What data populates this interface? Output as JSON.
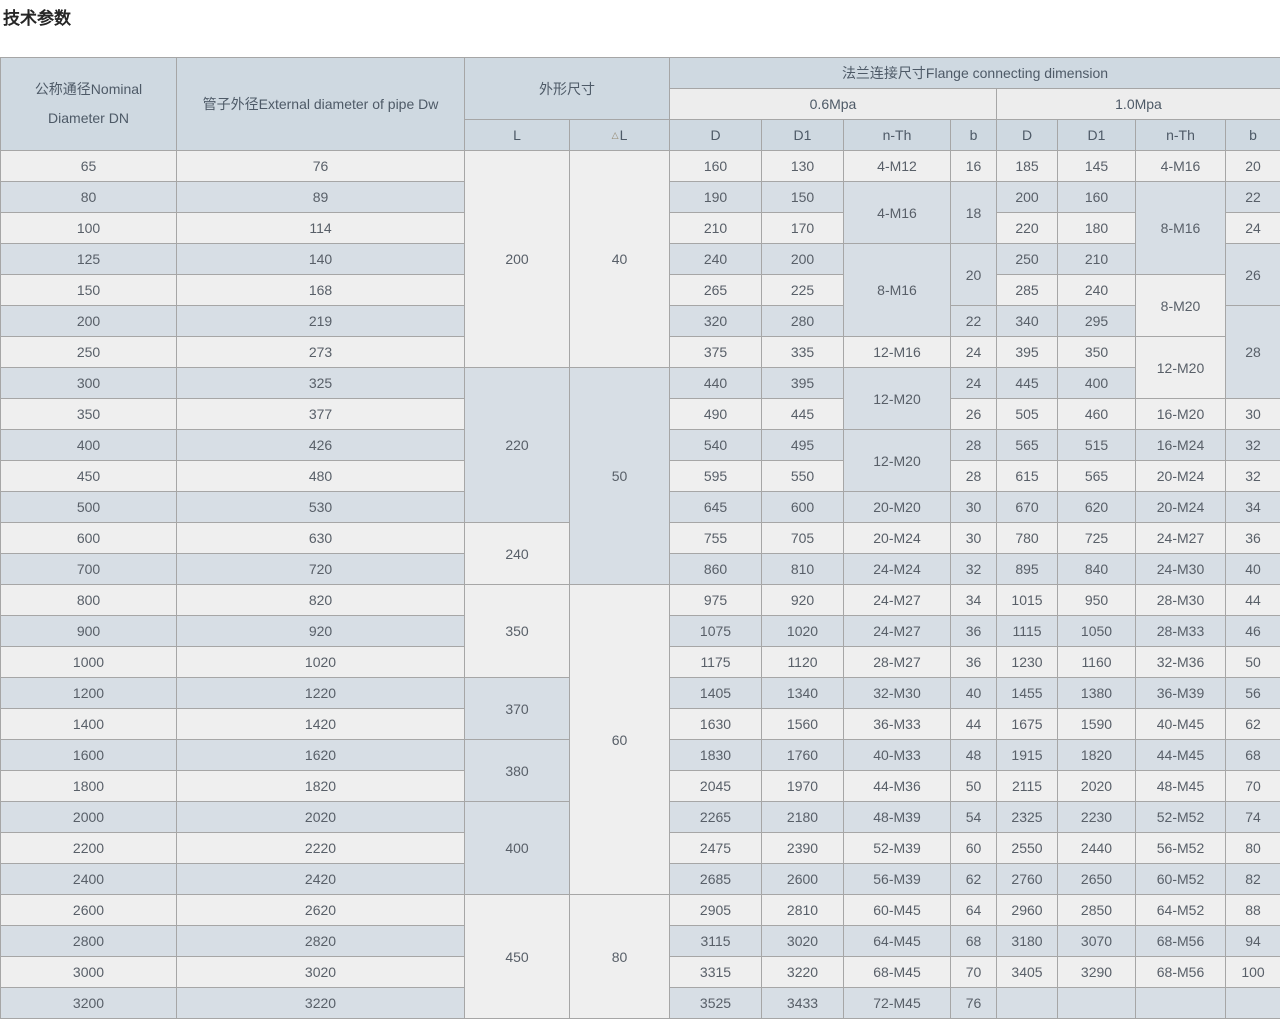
{
  "title": "技术参数",
  "table": {
    "colors": {
      "header_bg": "#cfd9e1",
      "subheader_bg": "#ededed",
      "row_light": "#efefef",
      "row_blue": "#d7dee5",
      "border": "#a6a6a6",
      "text": "#585f68"
    },
    "header": {
      "dn_line1": "公称通径Nominal",
      "dn_line2": "Diameter DN",
      "dw": "管子外径External diameter of pipe Dw",
      "overall": "外形尺寸",
      "flange": "法兰连接尺寸Flange connecting dimension",
      "p06": "0.6Mpa",
      "p10": "1.0Mpa",
      "l": "L",
      "dl_symbol": "△",
      "dl_letter": "L",
      "d": "D",
      "d1": "D1",
      "nth": "n-Th",
      "b": "b"
    },
    "rows": [
      {
        "dn": "65",
        "dw": "76"
      },
      {
        "dn": "80",
        "dw": "89"
      },
      {
        "dn": "100",
        "dw": "114"
      },
      {
        "dn": "125",
        "dw": "140"
      },
      {
        "dn": "150",
        "dw": "168"
      },
      {
        "dn": "200",
        "dw": "219"
      },
      {
        "dn": "250",
        "dw": "273"
      },
      {
        "dn": "300",
        "dw": "325"
      },
      {
        "dn": "350",
        "dw": "377"
      },
      {
        "dn": "400",
        "dw": "426"
      },
      {
        "dn": "450",
        "dw": "480"
      },
      {
        "dn": "500",
        "dw": "530"
      },
      {
        "dn": "600",
        "dw": "630"
      },
      {
        "dn": "700",
        "dw": "720"
      },
      {
        "dn": "800",
        "dw": "820"
      },
      {
        "dn": "900",
        "dw": "920"
      },
      {
        "dn": "1000",
        "dw": "1020"
      },
      {
        "dn": "1200",
        "dw": "1220"
      },
      {
        "dn": "1400",
        "dw": "1420"
      },
      {
        "dn": "1600",
        "dw": "1620"
      },
      {
        "dn": "1800",
        "dw": "1820"
      },
      {
        "dn": "2000",
        "dw": "2020"
      },
      {
        "dn": "2200",
        "dw": "2220"
      },
      {
        "dn": "2400",
        "dw": "2420"
      },
      {
        "dn": "2600",
        "dw": "2620"
      },
      {
        "dn": "2800",
        "dw": "2820"
      },
      {
        "dn": "3000",
        "dw": "3020"
      },
      {
        "dn": "3200",
        "dw": "3220"
      }
    ],
    "l_cells": [
      {
        "v": "200",
        "span": 7
      },
      {
        "v": "220",
        "span": 5
      },
      {
        "v": "240",
        "span": 2
      },
      {
        "v": "350",
        "span": 3
      },
      {
        "v": "370",
        "span": 2
      },
      {
        "v": "380",
        "span": 2
      },
      {
        "v": "400",
        "span": 3
      },
      {
        "v": "450",
        "span": 4
      }
    ],
    "dl_cells": [
      {
        "v": "40",
        "span": 7
      },
      {
        "v": "50",
        "span": 7
      },
      {
        "v": "60",
        "span": 10
      },
      {
        "v": "80",
        "span": 4
      }
    ],
    "p06": {
      "d": [
        "160",
        "190",
        "210",
        "240",
        "265",
        "320",
        "375",
        "440",
        "490",
        "540",
        "595",
        "645",
        "755",
        "860",
        "975",
        "1075",
        "1175",
        "1405",
        "1630",
        "1830",
        "2045",
        "2265",
        "2475",
        "2685",
        "2905",
        "3115",
        "3315",
        "3525"
      ],
      "d1": [
        "130",
        "150",
        "170",
        "200",
        "225",
        "280",
        "335",
        "395",
        "445",
        "495",
        "550",
        "600",
        "705",
        "810",
        "920",
        "1020",
        "1120",
        "1340",
        "1560",
        "1760",
        "1970",
        "2180",
        "2390",
        "2600",
        "2810",
        "3020",
        "3220",
        "3433"
      ],
      "nth_cells": [
        {
          "v": "4-M12",
          "span": 1
        },
        {
          "v": "4-M16",
          "span": 2
        },
        {
          "v": "8-M16",
          "span": 3
        },
        {
          "v": "12-M16",
          "span": 1
        },
        {
          "v": "12-M20",
          "span": 2
        },
        {
          "v": "12-M20",
          "span": 2
        },
        {
          "v": "20-M20",
          "span": 1
        },
        {
          "v": "20-M24",
          "span": 1
        },
        {
          "v": "24-M24",
          "span": 1
        },
        {
          "v": "24-M27",
          "span": 1
        },
        {
          "v": "24-M27",
          "span": 1
        },
        {
          "v": "28-M27",
          "span": 1
        },
        {
          "v": "32-M30",
          "span": 1
        },
        {
          "v": "36-M33",
          "span": 1
        },
        {
          "v": "40-M33",
          "span": 1
        },
        {
          "v": "44-M36",
          "span": 1
        },
        {
          "v": "48-M39",
          "span": 1
        },
        {
          "v": "52-M39",
          "span": 1
        },
        {
          "v": "56-M39",
          "span": 1
        },
        {
          "v": "60-M45",
          "span": 1
        },
        {
          "v": "64-M45",
          "span": 1
        },
        {
          "v": "68-M45",
          "span": 1
        },
        {
          "v": "72-M45",
          "span": 1
        }
      ],
      "b_cells": [
        {
          "v": "16",
          "span": 1
        },
        {
          "v": "18",
          "span": 2
        },
        {
          "v": "20",
          "span": 2
        },
        {
          "v": "22",
          "span": 1
        },
        {
          "v": "24",
          "span": 1
        },
        {
          "v": "24",
          "span": 1
        },
        {
          "v": "26",
          "span": 1
        },
        {
          "v": "28",
          "span": 1
        },
        {
          "v": "28",
          "span": 1
        },
        {
          "v": "30",
          "span": 1
        },
        {
          "v": "30",
          "span": 1
        },
        {
          "v": "32",
          "span": 1
        },
        {
          "v": "34",
          "span": 1
        },
        {
          "v": "36",
          "span": 1
        },
        {
          "v": "36",
          "span": 1
        },
        {
          "v": "40",
          "span": 1
        },
        {
          "v": "44",
          "span": 1
        },
        {
          "v": "48",
          "span": 1
        },
        {
          "v": "50",
          "span": 1
        },
        {
          "v": "54",
          "span": 1
        },
        {
          "v": "60",
          "span": 1
        },
        {
          "v": "62",
          "span": 1
        },
        {
          "v": "64",
          "span": 1
        },
        {
          "v": "68",
          "span": 1
        },
        {
          "v": "70",
          "span": 1
        },
        {
          "v": "76",
          "span": 1
        }
      ]
    },
    "p10": {
      "d": [
        "185",
        "200",
        "220",
        "250",
        "285",
        "340",
        "395",
        "445",
        "505",
        "565",
        "615",
        "670",
        "780",
        "895",
        "1015",
        "1115",
        "1230",
        "1455",
        "1675",
        "1915",
        "2115",
        "2325",
        "2550",
        "2760",
        "2960",
        "3180",
        "3405",
        ""
      ],
      "d1": [
        "145",
        "160",
        "180",
        "210",
        "240",
        "295",
        "350",
        "400",
        "460",
        "515",
        "565",
        "620",
        "725",
        "840",
        "950",
        "1050",
        "1160",
        "1380",
        "1590",
        "1820",
        "2020",
        "2230",
        "2440",
        "2650",
        "2850",
        "3070",
        "3290",
        ""
      ],
      "nth_cells": [
        {
          "v": "4-M16",
          "span": 1
        },
        {
          "v": "8-M16",
          "span": 3
        },
        {
          "v": "8-M20",
          "span": 2
        },
        {
          "v": "12-M20",
          "span": 2
        },
        {
          "v": "16-M20",
          "span": 1
        },
        {
          "v": "16-M24",
          "span": 1
        },
        {
          "v": "20-M24",
          "span": 1
        },
        {
          "v": "20-M24",
          "span": 1
        },
        {
          "v": "24-M27",
          "span": 1
        },
        {
          "v": "24-M30",
          "span": 1
        },
        {
          "v": "28-M30",
          "span": 1
        },
        {
          "v": "28-M33",
          "span": 1
        },
        {
          "v": "32-M36",
          "span": 1
        },
        {
          "v": "36-M39",
          "span": 1
        },
        {
          "v": "40-M45",
          "span": 1
        },
        {
          "v": "44-M45",
          "span": 1
        },
        {
          "v": "48-M45",
          "span": 1
        },
        {
          "v": "52-M52",
          "span": 1
        },
        {
          "v": "56-M52",
          "span": 1
        },
        {
          "v": "60-M52",
          "span": 1
        },
        {
          "v": "64-M52",
          "span": 1
        },
        {
          "v": "68-M56",
          "span": 1
        },
        {
          "v": "68-M56",
          "span": 1
        },
        {
          "v": "",
          "span": 1
        }
      ],
      "b_cells": [
        {
          "v": "20",
          "span": 1
        },
        {
          "v": "22",
          "span": 1
        },
        {
          "v": "24",
          "span": 1
        },
        {
          "v": "26",
          "span": 2
        },
        {
          "v": "28",
          "span": 3
        },
        {
          "v": "30",
          "span": 1
        },
        {
          "v": "32",
          "span": 1
        },
        {
          "v": "32",
          "span": 1
        },
        {
          "v": "34",
          "span": 1
        },
        {
          "v": "36",
          "span": 1
        },
        {
          "v": "40",
          "span": 1
        },
        {
          "v": "44",
          "span": 1
        },
        {
          "v": "46",
          "span": 1
        },
        {
          "v": "50",
          "span": 1
        },
        {
          "v": "56",
          "span": 1
        },
        {
          "v": "62",
          "span": 1
        },
        {
          "v": "68",
          "span": 1
        },
        {
          "v": "70",
          "span": 1
        },
        {
          "v": "74",
          "span": 1
        },
        {
          "v": "80",
          "span": 1
        },
        {
          "v": "82",
          "span": 1
        },
        {
          "v": "88",
          "span": 1
        },
        {
          "v": "94",
          "span": 1
        },
        {
          "v": "100",
          "span": 1
        },
        {
          "v": "",
          "span": 1
        }
      ]
    }
  }
}
